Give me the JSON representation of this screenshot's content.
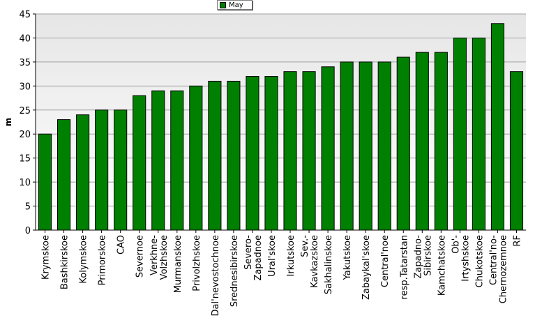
{
  "chart_data": {
    "type": "bar",
    "ylabel": "m",
    "xlabel": "",
    "ylim": [
      0,
      45
    ],
    "yticks": [
      0,
      5,
      10,
      15,
      20,
      25,
      30,
      35,
      40,
      45
    ],
    "grid": true,
    "legend_position": "top-center",
    "categories": [
      "Krymskoe",
      "Bashkirskoe",
      "Kolymskoe",
      "Primorskoe",
      "CAO",
      "Severnoe",
      "Verkhne-\nVolzhskoe",
      "Murmanskoe",
      "Privolzhskoe",
      "Dal'nevostochnoe",
      "Srednesibirskoe",
      "Severo-\nZapadnoe",
      "Ural'skoe",
      "Irkutskoe",
      "Sev.-\nKavkazskoe",
      "Sakhalinskoe",
      "Yakutskoe",
      "Zabaykal'skoe",
      "Central'noe",
      "resp.Tatarstan",
      "Zapadno-\nSibirskoe",
      "Kamchatskoe",
      "Ob'-\nIrtyshskoe",
      "Chukotskoe",
      "Central'no-\nChernozemnoe",
      "RF"
    ],
    "series": [
      {
        "name": "May",
        "color": "#008000",
        "values": [
          20,
          23,
          24,
          25,
          25,
          28,
          29,
          29,
          30,
          31,
          31,
          32,
          32,
          33,
          33,
          34,
          35,
          35,
          35,
          36,
          37,
          37,
          40,
          40,
          43,
          33
        ]
      }
    ]
  }
}
